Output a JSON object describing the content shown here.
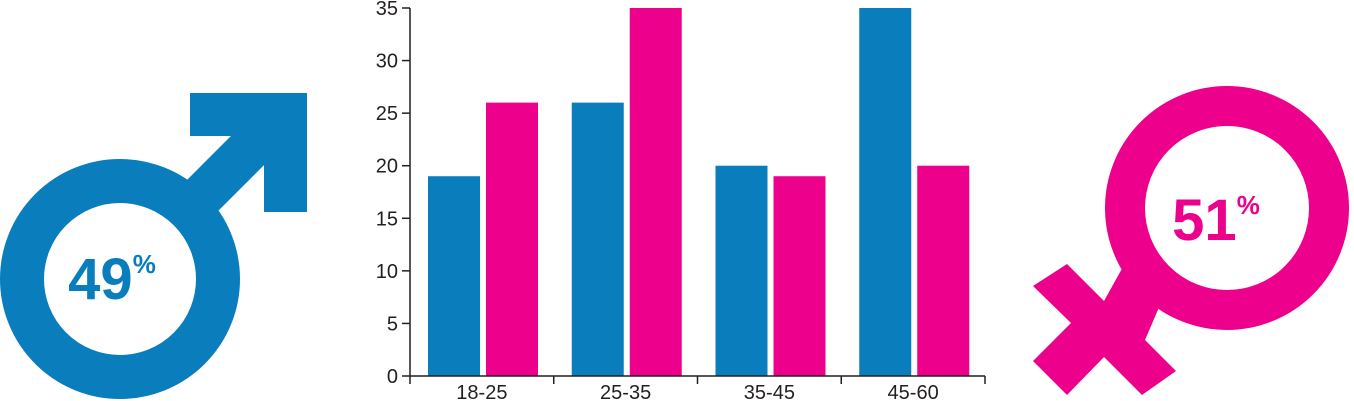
{
  "colors": {
    "male": "#0a7dbd",
    "female": "#ec008c",
    "axis": "#231f20"
  },
  "male_symbol": {
    "icon": "male-symbol-icon",
    "percent_value": "49",
    "percent_sign": "%"
  },
  "female_symbol": {
    "icon": "female-symbol-icon",
    "percent_value": "51",
    "percent_sign": "%"
  },
  "chart_data": {
    "type": "bar",
    "categories": [
      "18-25",
      "25-35",
      "35-45",
      "45-60"
    ],
    "series": [
      {
        "values": [
          19,
          26,
          20,
          35
        ],
        "color": "#0a7dbd"
      },
      {
        "values": [
          26,
          35,
          19,
          20
        ],
        "color": "#ec008c"
      }
    ],
    "y_ticks": [
      0,
      5,
      10,
      15,
      20,
      25,
      30,
      35
    ],
    "ylim": [
      0,
      35
    ],
    "grid": false,
    "title": "",
    "xlabel": "",
    "ylabel": ""
  }
}
